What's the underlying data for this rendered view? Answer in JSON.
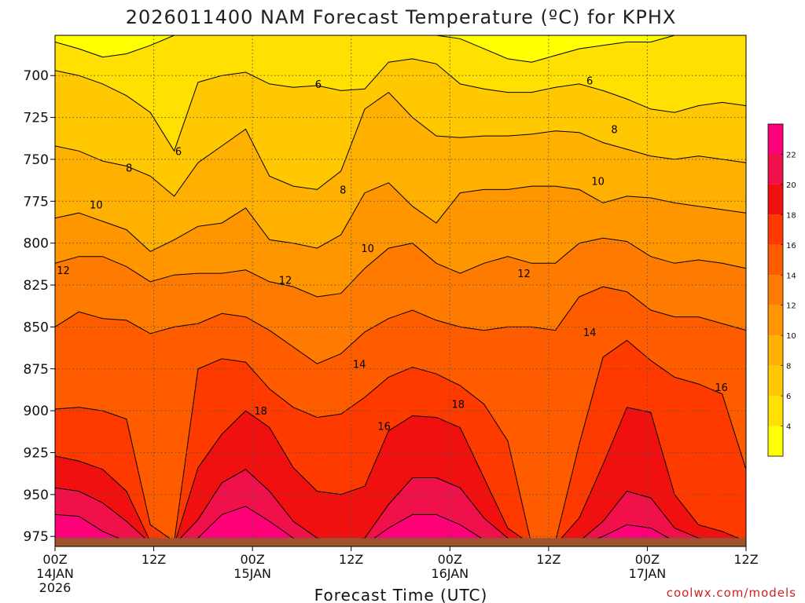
{
  "chart_data": {
    "type": "heatmap",
    "title": "2026011400 NAM Forecast Temperature (ºC) for KPHX",
    "xlabel": "Forecast Time (UTC)",
    "ylabel": "",
    "credit": "coolwx.com/models",
    "x_hours": [
      0,
      84
    ],
    "x_ticks": [
      {
        "hour": 0,
        "line1": "00Z",
        "line2": "14JAN",
        "line3": "2026"
      },
      {
        "hour": 12,
        "line1": "12Z",
        "line2": "",
        "line3": ""
      },
      {
        "hour": 24,
        "line1": "00Z",
        "line2": "15JAN",
        "line3": ""
      },
      {
        "hour": 36,
        "line1": "12Z",
        "line2": "",
        "line3": ""
      },
      {
        "hour": 48,
        "line1": "00Z",
        "line2": "16JAN",
        "line3": ""
      },
      {
        "hour": 60,
        "line1": "12Z",
        "line2": "",
        "line3": ""
      },
      {
        "hour": 72,
        "line1": "00Z",
        "line2": "17JAN",
        "line3": ""
      },
      {
        "hour": 84,
        "line1": "12Z",
        "line2": "",
        "line3": ""
      }
    ],
    "y_pressure_range": [
      676,
      981
    ],
    "y_ticks": [
      {
        "p": 700,
        "label": "700"
      },
      {
        "p": 725,
        "label": "725"
      },
      {
        "p": 750,
        "label": "750"
      },
      {
        "p": 775,
        "label": "775"
      },
      {
        "p": 800,
        "label": "800"
      },
      {
        "p": 825,
        "label": "825"
      },
      {
        "p": 850,
        "label": "850"
      },
      {
        "p": 875,
        "label": "875"
      },
      {
        "p": 900,
        "label": "900"
      },
      {
        "p": 925,
        "label": "925"
      },
      {
        "p": 950,
        "label": "950"
      },
      {
        "p": 975,
        "label": "975"
      }
    ],
    "colorbar_levels": [
      4,
      6,
      8,
      10,
      12,
      14,
      16,
      18,
      20,
      22
    ],
    "colorbar_labels": [
      "4",
      "6",
      "8",
      "10",
      "12",
      "14",
      "16",
      "18",
      "20",
      "22"
    ],
    "colorbar_colors": [
      "#ffff00",
      "#ffe000",
      "#ffc800",
      "#ffb000",
      "#ff9600",
      "#ff7a00",
      "#ff5c00",
      "#ff3a00",
      "#f01010",
      "#f0104a",
      "#ff0078"
    ],
    "contour_labels": [
      {
        "text": "6",
        "hour": 32,
        "p": 705
      },
      {
        "text": "6",
        "hour": 65,
        "p": 703
      },
      {
        "text": "6",
        "hour": 15,
        "p": 745
      },
      {
        "text": "8",
        "hour": 9,
        "p": 755
      },
      {
        "text": "8",
        "hour": 35,
        "p": 768
      },
      {
        "text": "8",
        "hour": 68,
        "p": 732
      },
      {
        "text": "10",
        "hour": 5,
        "p": 777
      },
      {
        "text": "10",
        "hour": 38,
        "p": 803
      },
      {
        "text": "10",
        "hour": 66,
        "p": 763
      },
      {
        "text": "12",
        "hour": 1,
        "p": 816
      },
      {
        "text": "12",
        "hour": 28,
        "p": 822
      },
      {
        "text": "12",
        "hour": 57,
        "p": 818
      },
      {
        "text": "14",
        "hour": 37,
        "p": 872
      },
      {
        "text": "14",
        "hour": 65,
        "p": 853
      },
      {
        "text": "16",
        "hour": 40,
        "p": 909
      },
      {
        "text": "16",
        "hour": 81,
        "p": 886
      },
      {
        "text": "18",
        "hour": 25,
        "p": 900
      },
      {
        "text": "18",
        "hour": 49,
        "p": 896
      }
    ],
    "temperature_bands": [
      {
        "level": 4,
        "boundary_p": [
          680,
          684,
          689,
          687,
          682,
          676,
          676,
          676,
          676,
          676,
          676,
          676,
          676,
          676,
          676,
          676,
          676,
          678,
          684,
          690,
          692,
          688,
          684,
          682,
          680,
          680,
          676,
          676,
          676,
          676
        ]
      },
      {
        "level": 6,
        "boundary_p": [
          697,
          700,
          705,
          712,
          722,
          745,
          704,
          700,
          698,
          705,
          707,
          706,
          709,
          708,
          692,
          690,
          693,
          705,
          708,
          710,
          710,
          707,
          705,
          709,
          714,
          720,
          722,
          718,
          716,
          718
        ]
      },
      {
        "level": 8,
        "boundary_p": [
          742,
          745,
          751,
          754,
          760,
          772,
          752,
          742,
          732,
          760,
          766,
          768,
          757,
          720,
          710,
          725,
          736,
          737,
          736,
          736,
          735,
          733,
          734,
          740,
          744,
          748,
          750,
          748,
          750,
          752
        ]
      },
      {
        "level": 10,
        "boundary_p": [
          785,
          782,
          787,
          792,
          805,
          798,
          790,
          788,
          779,
          798,
          800,
          803,
          795,
          770,
          764,
          778,
          788,
          770,
          768,
          768,
          766,
          766,
          768,
          776,
          772,
          773,
          776,
          778,
          780,
          782
        ]
      },
      {
        "level": 12,
        "boundary_p": [
          812,
          808,
          808,
          814,
          823,
          819,
          818,
          818,
          816,
          823,
          826,
          832,
          830,
          815,
          803,
          800,
          812,
          818,
          812,
          808,
          812,
          812,
          800,
          797,
          799,
          808,
          812,
          810,
          812,
          815
        ]
      },
      {
        "level": 14,
        "boundary_p": [
          850,
          841,
          845,
          846,
          854,
          850,
          848,
          842,
          844,
          852,
          862,
          872,
          866,
          853,
          845,
          840,
          846,
          850,
          852,
          850,
          850,
          852,
          832,
          826,
          829,
          840,
          844,
          844,
          848,
          852
        ]
      },
      {
        "level": 16,
        "boundary_p": [
          899,
          898,
          900,
          905,
          968,
          978,
          875,
          869,
          871,
          887,
          898,
          904,
          902,
          892,
          880,
          874,
          878,
          885,
          896,
          918,
          980,
          978,
          920,
          868,
          858,
          870,
          880,
          884,
          890,
          935
        ]
      },
      {
        "level": 18,
        "boundary_p": [
          927,
          930,
          935,
          948,
          978,
          980,
          934,
          914,
          900,
          910,
          934,
          948,
          950,
          945,
          912,
          903,
          904,
          910,
          940,
          970,
          980,
          980,
          964,
          932,
          898,
          901,
          950,
          968,
          972,
          978
        ]
      },
      {
        "level": 20,
        "boundary_p": [
          946,
          948,
          955,
          966,
          979,
          980,
          965,
          943,
          935,
          948,
          966,
          976,
          978,
          976,
          956,
          940,
          940,
          946,
          964,
          976,
          980,
          980,
          978,
          966,
          948,
          952,
          970,
          976,
          978,
          980
        ]
      },
      {
        "level": 22,
        "boundary_p": [
          962,
          963,
          972,
          978,
          980,
          980,
          976,
          962,
          957,
          966,
          976,
          980,
          980,
          980,
          970,
          962,
          962,
          968,
          977,
          980,
          980,
          980,
          980,
          975,
          968,
          970,
          978,
          980,
          980,
          980
        ]
      }
    ]
  }
}
